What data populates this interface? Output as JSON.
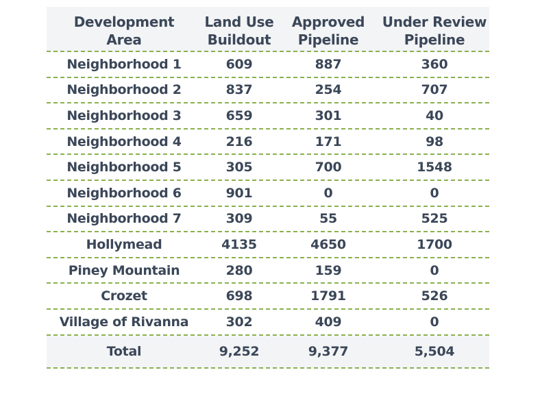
{
  "table": {
    "headers": [
      [
        "Development",
        "Area"
      ],
      [
        "Land Use",
        "Buildout"
      ],
      [
        "Approved",
        "Pipeline"
      ],
      [
        "Under Review",
        "Pipeline"
      ]
    ],
    "rows": [
      [
        "Neighborhood 1",
        "609",
        "887",
        "360"
      ],
      [
        "Neighborhood 2",
        "837",
        "254",
        "707"
      ],
      [
        "Neighborhood 3",
        "659",
        "301",
        "40"
      ],
      [
        "Neighborhood 4",
        "216",
        "171",
        "98"
      ],
      [
        "Neighborhood 5",
        "305",
        "700",
        "1548"
      ],
      [
        "Neighborhood 6",
        "901",
        "0",
        "0"
      ],
      [
        "Neighborhood 7",
        "309",
        "55",
        "525"
      ],
      [
        "Hollymead",
        "4135",
        "4650",
        "1700"
      ],
      [
        "Piney Mountain",
        "280",
        "159",
        "0"
      ],
      [
        "Crozet",
        "698",
        "1791",
        "526"
      ],
      [
        "Village of Rivanna",
        "302",
        "409",
        "0"
      ]
    ],
    "total": [
      "Total",
      "9,252",
      "9,377",
      "5,504"
    ]
  },
  "colors": {
    "text": "#3b4758",
    "divider": "#8ab04e",
    "shade": "#f3f4f6"
  }
}
